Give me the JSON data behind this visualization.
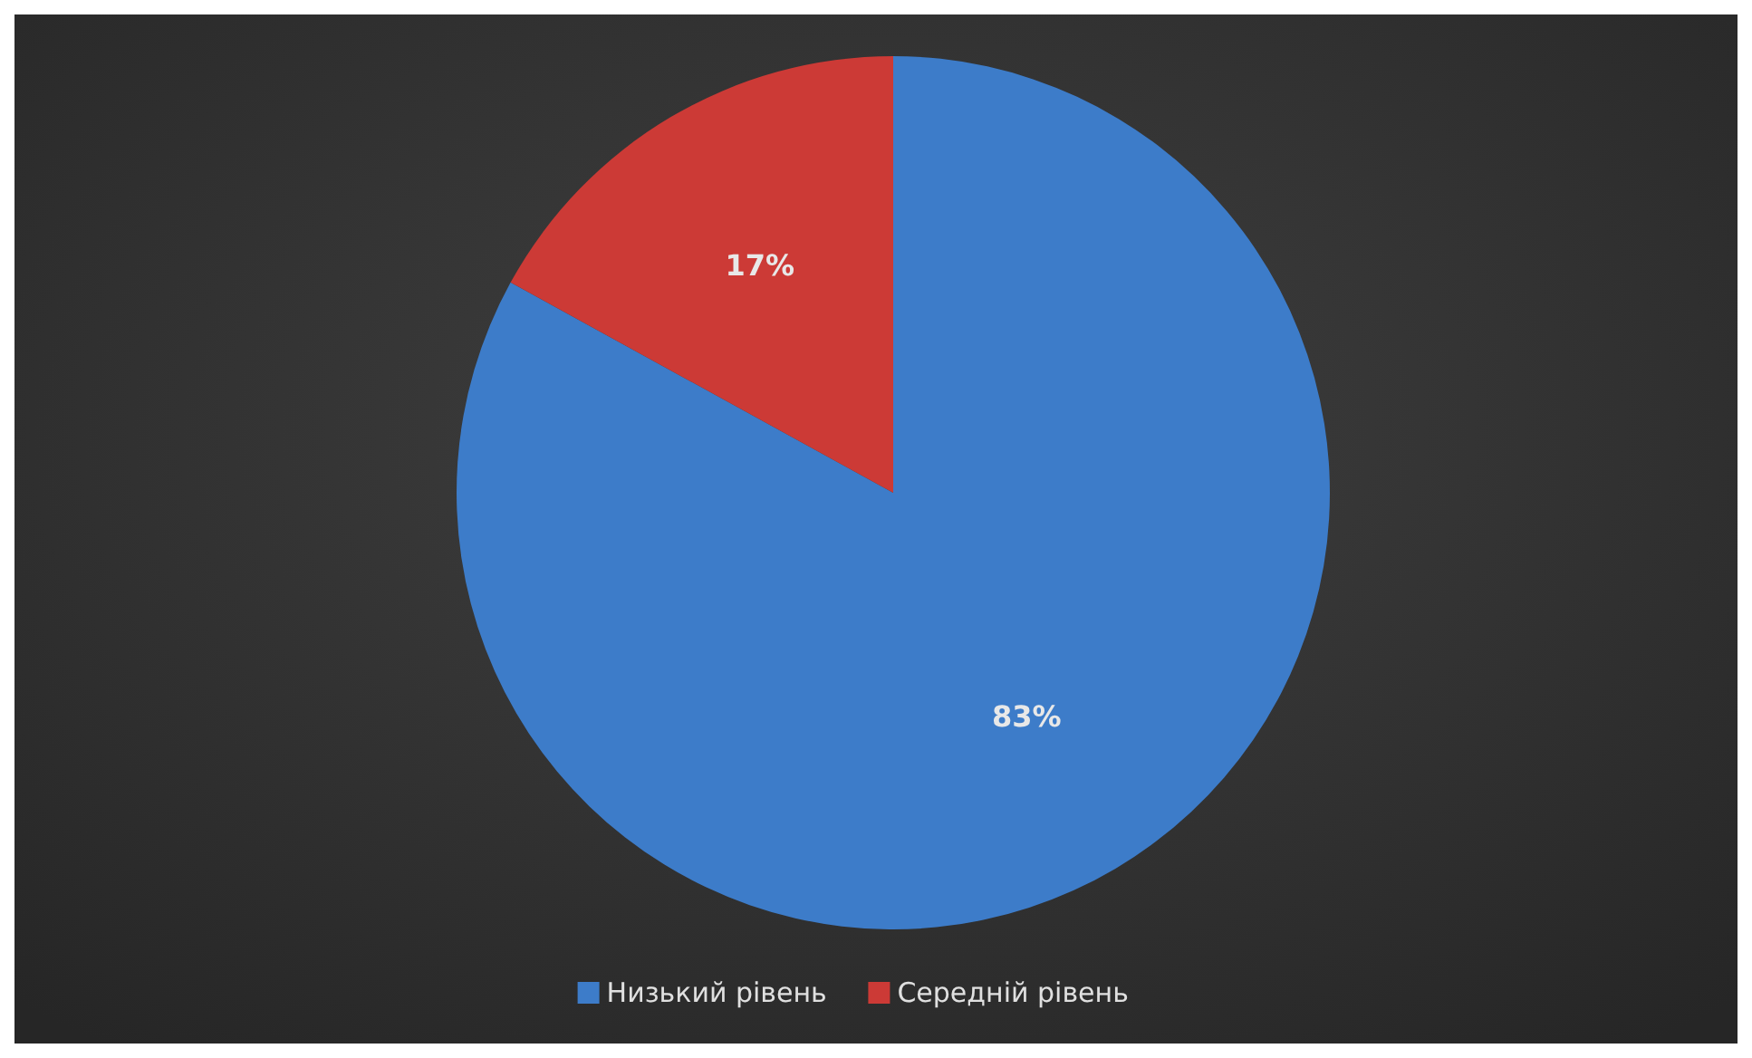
{
  "chart_data": {
    "type": "pie",
    "categories": [
      "Низький рівень",
      "Середній рівень"
    ],
    "values": [
      83,
      17
    ],
    "colors": [
      "#3d7cc9",
      "#cc3a36"
    ],
    "value_labels": [
      "83%",
      "17%"
    ],
    "legend": "bottom"
  }
}
